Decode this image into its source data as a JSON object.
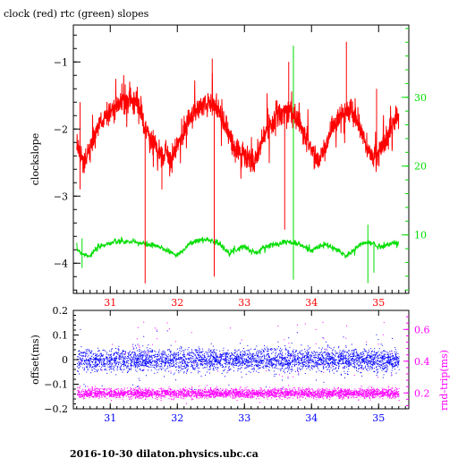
{
  "chart_data": [
    {
      "type": "line",
      "title": "clock (red) rtc (green) slopes",
      "ylabel": "clockslope",
      "xlabel": "",
      "xlim": [
        30.45,
        35.45
      ],
      "ylim": [
        -4.45,
        -0.45
      ],
      "y2lim": [
        1.5,
        40.5
      ],
      "grid": false,
      "legend": "none",
      "x_ticks": [
        "31",
        "32",
        "33",
        "34",
        "35"
      ],
      "y_ticks": [
        "-1",
        "-2",
        "-3",
        "-4"
      ],
      "y2_ticks": [
        "30",
        "20",
        "10"
      ],
      "colors": {
        "clock": "#ff0000",
        "rtc": "#00dd00",
        "axis": "#000000"
      },
      "series": [
        {
          "axis": "left",
          "x": [
            30.5,
            30.6,
            30.7,
            30.8,
            30.9,
            31.0,
            31.1,
            31.2,
            31.3,
            31.4,
            31.5,
            31.6,
            31.7,
            31.8,
            31.9,
            32.0,
            32.1,
            32.2,
            32.3,
            32.4,
            32.5,
            32.6,
            32.7,
            32.8,
            32.9,
            33.0,
            33.1,
            33.2,
            33.3,
            33.4,
            33.5,
            33.6,
            33.7,
            33.8,
            33.9,
            34.0,
            34.1,
            34.2,
            34.3,
            34.4,
            34.5,
            34.6,
            34.7,
            34.8,
            34.9,
            35.0,
            35.1,
            35.2,
            35.3
          ],
          "values": [
            -2.2,
            -2.5,
            -2.3,
            -2.0,
            -1.85,
            -1.75,
            -1.65,
            -1.6,
            -1.55,
            -1.6,
            -1.9,
            -2.2,
            -2.3,
            -2.4,
            -2.45,
            -2.3,
            -2.0,
            -1.8,
            -1.72,
            -1.65,
            -1.62,
            -1.7,
            -1.9,
            -2.2,
            -2.35,
            -2.4,
            -2.5,
            -2.35,
            -2.1,
            -1.9,
            -1.8,
            -1.72,
            -1.7,
            -1.9,
            -2.1,
            -2.3,
            -2.5,
            -2.3,
            -2.0,
            -1.85,
            -1.78,
            -1.75,
            -1.9,
            -2.2,
            -2.4,
            -2.35,
            -2.2,
            -1.9,
            -1.8
          ]
        },
        {
          "axis": "right",
          "x": [
            30.5,
            30.6,
            30.7,
            30.8,
            30.9,
            31.0,
            31.1,
            31.2,
            31.3,
            31.4,
            31.5,
            31.6,
            31.7,
            31.8,
            31.9,
            32.0,
            32.1,
            32.2,
            32.3,
            32.4,
            32.5,
            32.6,
            32.7,
            32.8,
            32.9,
            33.0,
            33.1,
            33.2,
            33.3,
            33.4,
            33.5,
            33.6,
            33.7,
            33.8,
            33.9,
            34.0,
            34.1,
            34.2,
            34.3,
            34.4,
            34.5,
            34.6,
            34.7,
            34.8,
            34.9,
            35.0,
            35.1,
            35.2,
            35.3
          ],
          "values": [
            8.0,
            7.2,
            7.0,
            8.0,
            8.6,
            8.8,
            9.0,
            9.0,
            9.0,
            8.9,
            8.7,
            8.5,
            8.3,
            8.0,
            7.5,
            7.0,
            8.0,
            8.8,
            9.2,
            9.3,
            9.3,
            8.9,
            8.0,
            7.5,
            8.0,
            8.4,
            7.6,
            7.4,
            8.3,
            8.5,
            8.8,
            9.0,
            8.9,
            8.7,
            8.2,
            7.8,
            8.2,
            8.6,
            8.2,
            7.7,
            7.0,
            7.5,
            8.4,
            8.9,
            8.8,
            8.3,
            8.5,
            8.8,
            8.8
          ]
        }
      ]
    },
    {
      "type": "scatter",
      "ylabel": "offset(ms)",
      "y2label": "rnd-trip(ms)",
      "xlim": [
        30.45,
        35.45
      ],
      "ylim": [
        -0.2,
        0.2
      ],
      "y2lim": [
        0.1,
        0.72
      ],
      "x_ticks": [
        "31",
        "32",
        "33",
        "34",
        "35"
      ],
      "y_ticks": [
        "0.2",
        "0.1",
        "0",
        "-0.1",
        "-0.2"
      ],
      "y2_ticks": [
        "0.6",
        "0.4",
        "0.2"
      ],
      "colors": {
        "offset": "#0000ff",
        "rndtrip": "#ff00ff",
        "axis": "#000000"
      },
      "series": [
        {
          "axis": "left",
          "x_range": [
            30.5,
            35.3
          ],
          "center": 0.0,
          "spread": 0.04
        },
        {
          "axis": "right",
          "x_range": [
            30.5,
            35.3
          ],
          "center": 0.2,
          "spread": 0.03
        }
      ]
    }
  ],
  "footer": "2016-10-30  dilaton.physics.ubc.ca"
}
